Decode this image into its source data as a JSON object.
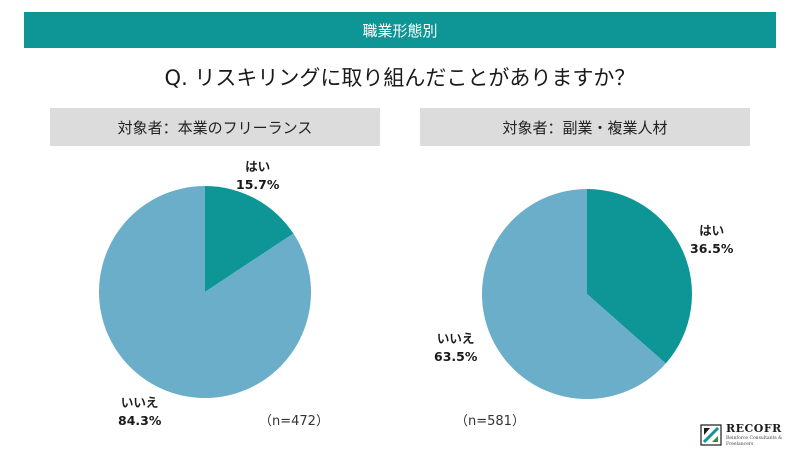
{
  "header": {
    "category": "職業形態別"
  },
  "question": "Q. リスキリングに取り組んだことがありますか？",
  "colors": {
    "yes": "#0e9696",
    "no": "#6aaec9",
    "banner": "#0e9696",
    "label_bg": "#dcdcdc"
  },
  "chart_data": [
    {
      "type": "pie",
      "title": "対象者：本業のフリーランス",
      "sample": "（n=472）",
      "slices": [
        {
          "label": "はい",
          "value": 15.7,
          "value_text": "15.7%"
        },
        {
          "label": "いいえ",
          "value": 84.3,
          "value_text": "84.3%"
        }
      ]
    },
    {
      "type": "pie",
      "title": "対象者：副業・複業人材",
      "sample": "（n=581）",
      "slices": [
        {
          "label": "はい",
          "value": 36.5,
          "value_text": "36.5%"
        },
        {
          "label": "いいえ",
          "value": 63.5,
          "value_text": "63.5%"
        }
      ]
    }
  ],
  "logo": {
    "name": "RECOFR",
    "subtitle": "Reinforce Consultants & Freelancers",
    "icon": "recofr-logo-icon"
  }
}
